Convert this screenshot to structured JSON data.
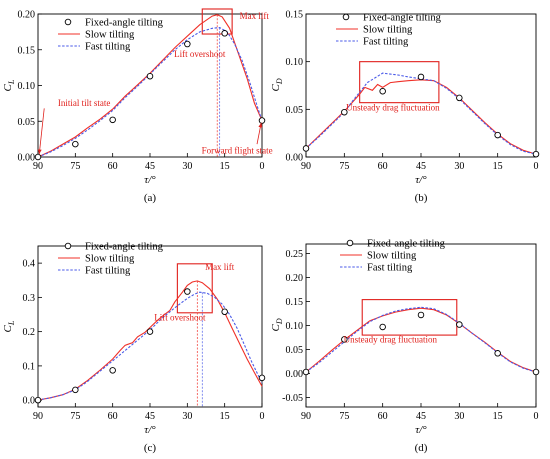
{
  "chart_data": [
    {
      "type": "line",
      "panel_label": "(a)",
      "ylabel_main": "C",
      "ylabel_sub": "L",
      "xlabel": "τ/°",
      "xlim": [
        90,
        0
      ],
      "ylim": [
        0,
        0.2
      ],
      "xticks": [
        "90",
        "75",
        "60",
        "45",
        "30",
        "15",
        "0"
      ],
      "yticks": [
        "0.00",
        "0.05",
        "0.10",
        "0.15",
        "0.20"
      ],
      "legend": [
        "Fixed-angle tilting",
        "Slow tilting",
        "Fast tilting"
      ],
      "legend_position": "top-left",
      "series": [
        {
          "name": "Fixed-angle tilting",
          "kind": "points",
          "x": [
            90,
            75,
            60,
            45,
            30,
            15,
            0
          ],
          "y": [
            0.0,
            0.018,
            0.052,
            0.113,
            0.158,
            0.173,
            0.051
          ]
        },
        {
          "name": "Slow tilting",
          "kind": "line",
          "x": [
            90,
            85,
            80,
            75,
            70,
            65,
            60,
            55,
            50,
            45,
            40,
            35,
            30,
            25,
            20,
            18,
            16,
            13,
            10,
            6,
            3,
            0
          ],
          "y": [
            0.0,
            0.008,
            0.018,
            0.028,
            0.041,
            0.053,
            0.067,
            0.085,
            0.101,
            0.117,
            0.135,
            0.153,
            0.169,
            0.185,
            0.197,
            0.199,
            0.196,
            0.18,
            0.15,
            0.11,
            0.075,
            0.051
          ]
        },
        {
          "name": "Fast tilting",
          "kind": "line",
          "x": [
            90,
            85,
            80,
            75,
            70,
            65,
            60,
            55,
            50,
            45,
            40,
            35,
            30,
            25,
            20,
            17,
            14,
            11,
            8,
            5,
            2,
            0
          ],
          "y": [
            0.0,
            0.007,
            0.016,
            0.026,
            0.038,
            0.051,
            0.065,
            0.083,
            0.099,
            0.116,
            0.133,
            0.15,
            0.164,
            0.175,
            0.18,
            0.181,
            0.175,
            0.158,
            0.135,
            0.105,
            0.072,
            0.051
          ]
        }
      ],
      "annotations": [
        {
          "text": "Max lift",
          "x": 9,
          "y": 0.193
        },
        {
          "text": "Lift overshoot",
          "x": 25,
          "y": 0.14
        },
        {
          "text": "Initial tilt state",
          "x": 82,
          "y": 0.071
        },
        {
          "text": "Forward flight state",
          "x": 10,
          "y": 0.005
        }
      ],
      "highlight_box": {
        "x0": 24,
        "x1": 12,
        "y0": 0.172,
        "y1": 0.207
      },
      "vlines": [
        {
          "x": 18,
          "y": 0.199,
          "series": "Slow tilting"
        },
        {
          "x": 17,
          "y": 0.181,
          "series": "Fast tilting"
        }
      ],
      "arrows": [
        {
          "from": [
            87.5,
            0.068
          ],
          "to": [
            89.5,
            0.004
          ]
        },
        {
          "from": [
            2,
            0.018
          ],
          "to": [
            0.3,
            0.048
          ]
        }
      ]
    },
    {
      "type": "line",
      "panel_label": "(b)",
      "ylabel_main": "C",
      "ylabel_sub": "D",
      "xlabel": "τ/°",
      "xlim": [
        90,
        0
      ],
      "ylim": [
        0,
        0.15
      ],
      "xticks": [
        "90",
        "75",
        "60",
        "45",
        "30",
        "15",
        "0"
      ],
      "yticks": [
        "0.00",
        "0.05",
        "0.10",
        "0.15"
      ],
      "legend": [
        "Fixed-angle tilting",
        "Slow tilting",
        "Fast tilting"
      ],
      "legend_position": "top-right",
      "series": [
        {
          "name": "Fixed-angle tilting",
          "kind": "points",
          "x": [
            90,
            75,
            60,
            45,
            30,
            15,
            0
          ],
          "y": [
            0.009,
            0.047,
            0.069,
            0.084,
            0.062,
            0.023,
            0.003
          ]
        },
        {
          "name": "Slow tilting",
          "kind": "line",
          "x": [
            90,
            85,
            80,
            75,
            72,
            69,
            67,
            64,
            62,
            60,
            57,
            54,
            50,
            45,
            40,
            35,
            30,
            25,
            20,
            15,
            10,
            5,
            0
          ],
          "y": [
            0.009,
            0.022,
            0.035,
            0.048,
            0.057,
            0.066,
            0.073,
            0.07,
            0.076,
            0.073,
            0.078,
            0.079,
            0.08,
            0.081,
            0.08,
            0.073,
            0.062,
            0.049,
            0.036,
            0.024,
            0.014,
            0.007,
            0.003
          ]
        },
        {
          "name": "Fast tilting",
          "kind": "line",
          "x": [
            90,
            85,
            80,
            75,
            72,
            69,
            66,
            63,
            60,
            57,
            54,
            50,
            45,
            40,
            35,
            30,
            25,
            20,
            15,
            10,
            5,
            0
          ],
          "y": [
            0.009,
            0.021,
            0.034,
            0.047,
            0.058,
            0.068,
            0.078,
            0.083,
            0.088,
            0.087,
            0.086,
            0.084,
            0.082,
            0.08,
            0.072,
            0.061,
            0.048,
            0.035,
            0.023,
            0.013,
            0.006,
            0.003
          ]
        }
      ],
      "annotations": [
        {
          "text": "Unsteady drag fluctuation",
          "x": 56,
          "y": 0.049
        }
      ],
      "highlight_box": {
        "x0": 69,
        "x1": 38,
        "y0": 0.057,
        "y1": 0.1
      }
    },
    {
      "type": "line",
      "panel_label": "(c)",
      "ylabel_main": "C",
      "ylabel_sub": "L",
      "xlabel": "τ/°",
      "xlim": [
        90,
        0
      ],
      "ylim": [
        -0.02,
        0.45
      ],
      "xticks": [
        "90",
        "75",
        "60",
        "45",
        "30",
        "15",
        "0"
      ],
      "yticks": [
        "0.0",
        "0.1",
        "0.2",
        "0.3",
        "0.4"
      ],
      "legend": [
        "Fixed-angle tilting",
        "Slow tilting",
        "Fast tilting"
      ],
      "legend_position": "top-left",
      "series": [
        {
          "name": "Fixed-angle tilting",
          "kind": "points",
          "x": [
            90,
            75,
            60,
            45,
            30,
            15,
            0
          ],
          "y": [
            0.0,
            0.03,
            0.087,
            0.2,
            0.317,
            0.258,
            0.065
          ]
        },
        {
          "name": "Slow tilting",
          "kind": "line",
          "x": [
            90,
            85,
            80,
            75,
            70,
            65,
            60,
            57,
            55,
            52,
            50,
            47,
            45,
            42,
            40,
            37,
            35,
            32,
            30,
            28,
            26,
            24,
            21,
            18,
            15,
            12,
            9,
            6,
            3,
            0
          ],
          "y": [
            0.0,
            0.007,
            0.016,
            0.032,
            0.058,
            0.088,
            0.12,
            0.145,
            0.16,
            0.168,
            0.185,
            0.198,
            0.212,
            0.233,
            0.245,
            0.262,
            0.287,
            0.315,
            0.335,
            0.345,
            0.348,
            0.343,
            0.325,
            0.295,
            0.255,
            0.21,
            0.165,
            0.12,
            0.08,
            0.04
          ]
        },
        {
          "name": "Fast tilting",
          "kind": "line",
          "x": [
            90,
            85,
            80,
            75,
            70,
            65,
            60,
            55,
            50,
            45,
            40,
            35,
            30,
            27,
            25,
            22,
            19,
            16,
            13,
            10,
            7,
            4,
            0
          ],
          "y": [
            0.0,
            0.007,
            0.016,
            0.03,
            0.055,
            0.085,
            0.115,
            0.145,
            0.175,
            0.205,
            0.24,
            0.27,
            0.297,
            0.31,
            0.315,
            0.312,
            0.3,
            0.28,
            0.25,
            0.21,
            0.16,
            0.11,
            0.05
          ]
        }
      ],
      "annotations": [
        {
          "text": "Max lift",
          "x": 17,
          "y": 0.38
        },
        {
          "text": "Lift overshoot",
          "x": 33,
          "y": 0.232
        }
      ],
      "highlight_box": {
        "x0": 34,
        "x1": 20,
        "y0": 0.255,
        "y1": 0.398
      },
      "vlines": [
        {
          "x": 26,
          "y": 0.348,
          "series": "Slow tilting"
        },
        {
          "x": 24,
          "y": 0.315,
          "series": "Fast tilting"
        }
      ]
    },
    {
      "type": "line",
      "panel_label": "(d)",
      "ylabel_main": "C",
      "ylabel_sub": "D",
      "xlabel": "τ/°",
      "xlim": [
        90,
        0
      ],
      "ylim": [
        -0.07,
        0.27
      ],
      "xticks": [
        "90",
        "75",
        "60",
        "45",
        "30",
        "15",
        "0"
      ],
      "yticks": [
        "-0.05",
        "0.00",
        "0.05",
        "0.10",
        "0.15",
        "0.20",
        "0.25"
      ],
      "legend": [
        "Fixed-angle tilting",
        "Slow tilting",
        "Fast tilting"
      ],
      "legend_position": "top-right",
      "series": [
        {
          "name": "Fixed-angle tilting",
          "kind": "points",
          "x": [
            90,
            75,
            60,
            45,
            30,
            15,
            0
          ],
          "y": [
            0.003,
            0.071,
            0.097,
            0.122,
            0.102,
            0.042,
            0.003
          ]
        },
        {
          "name": "Slow tilting",
          "kind": "line",
          "x": [
            90,
            85,
            80,
            75,
            70,
            65,
            60,
            55,
            50,
            45,
            40,
            35,
            30,
            25,
            20,
            15,
            10,
            5,
            0
          ],
          "y": [
            0.003,
            0.025,
            0.048,
            0.07,
            0.09,
            0.11,
            0.12,
            0.128,
            0.133,
            0.136,
            0.133,
            0.122,
            0.104,
            0.084,
            0.065,
            0.044,
            0.025,
            0.012,
            0.003
          ]
        },
        {
          "name": "Fast tilting",
          "kind": "line",
          "x": [
            90,
            85,
            80,
            75,
            70,
            65,
            60,
            55,
            50,
            45,
            40,
            35,
            30,
            25,
            20,
            15,
            10,
            5,
            0
          ],
          "y": [
            0.003,
            0.022,
            0.044,
            0.066,
            0.088,
            0.108,
            0.121,
            0.13,
            0.135,
            0.138,
            0.135,
            0.123,
            0.105,
            0.084,
            0.064,
            0.043,
            0.024,
            0.011,
            0.003
          ]
        }
      ],
      "annotations": [
        {
          "text": "Unsteady drag fluctuation",
          "x": 57,
          "y": 0.065
        }
      ],
      "highlight_box": {
        "x0": 68,
        "x1": 31,
        "y0": 0.08,
        "y1": 0.154
      }
    }
  ]
}
